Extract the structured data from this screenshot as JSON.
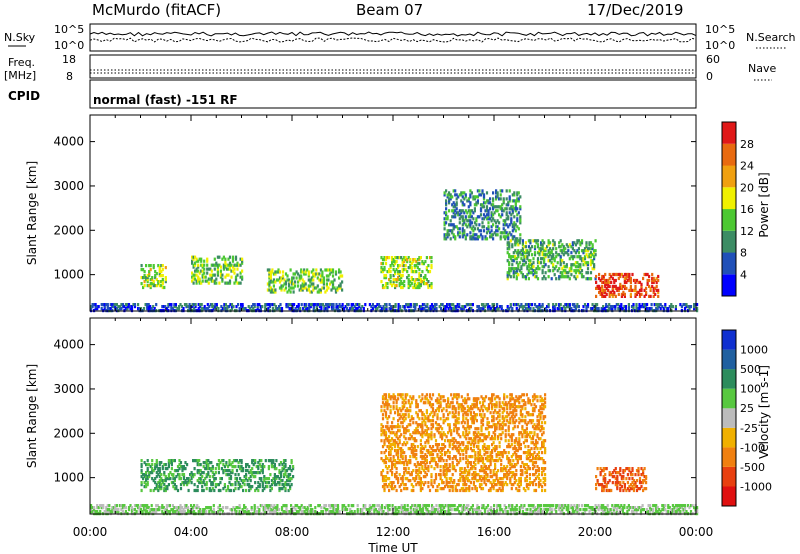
{
  "header": {
    "station": "McMurdo (fitACF)",
    "beam": "Beam 07",
    "date": "17/Dec/2019"
  },
  "top_panel": {
    "left_label": "N.Sky",
    "right_label": "N.Search",
    "left_ticks": [
      "10^5",
      "10^0"
    ],
    "right_ticks": [
      "10^5",
      "10^0"
    ]
  },
  "freq_panel": {
    "left_label_1": "Freq.",
    "left_label_2": "[MHz]",
    "right_label": "Nave",
    "left_ticks": [
      "18",
      "8"
    ],
    "right_ticks": [
      "60",
      "0"
    ]
  },
  "cpid_panel": {
    "label": "CPID",
    "text": "normal (fast) -151 RF"
  },
  "x_axis": {
    "label": "Time UT",
    "ticks": [
      "00:00",
      "04:00",
      "08:00",
      "12:00",
      "16:00",
      "20:00",
      "00:00"
    ]
  },
  "chart_data": [
    {
      "type": "heatmap",
      "title": "Power",
      "xlabel": "Time UT",
      "ylabel": "Slant Range [km]",
      "colorbar_label": "Power [dB]",
      "y_ticks": [
        1000,
        2000,
        3000,
        4000
      ],
      "colorbar_ticks": [
        4,
        8,
        12,
        16,
        20,
        24,
        28
      ],
      "colors": [
        "#0000ff",
        "#2050b8",
        "#3c8c64",
        "#4cc832",
        "#f0f000",
        "#f0a010",
        "#e86a10",
        "#e01818"
      ],
      "echo_regions": [
        {
          "time": "00:00-24:00",
          "range_km": [
            180,
            320
          ],
          "typical_power_db": 6
        },
        {
          "time": "02:00-03:00",
          "range_km": [
            700,
            1200
          ],
          "typical_power_db": 16
        },
        {
          "time": "04:00-06:00",
          "range_km": [
            800,
            1400
          ],
          "typical_power_db": 14
        },
        {
          "time": "07:00-10:00",
          "range_km": [
            600,
            1100
          ],
          "typical_power_db": 14
        },
        {
          "time": "11:30-13:30",
          "range_km": [
            700,
            1400
          ],
          "typical_power_db": 16
        },
        {
          "time": "14:00-17:00",
          "range_km": [
            1800,
            2900
          ],
          "typical_power_db": 10
        },
        {
          "time": "16:30-20:00",
          "range_km": [
            900,
            1800
          ],
          "typical_power_db": 12
        },
        {
          "time": "20:00-22:30",
          "range_km": [
            500,
            1000
          ],
          "typical_power_db": 28
        }
      ]
    },
    {
      "type": "heatmap",
      "title": "Velocity",
      "xlabel": "Time UT",
      "ylabel": "Slant Range [km]",
      "colorbar_label": "Velocity [m s-1]",
      "y_ticks": [
        1000,
        2000,
        3000,
        4000
      ],
      "colorbar_ticks": [
        1000,
        500,
        100,
        25,
        -25,
        -100,
        -500,
        -1000
      ],
      "colors": [
        "#1030d0",
        "#2060a0",
        "#2c8c5c",
        "#58c840",
        "#bcbcbc",
        "#f0b000",
        "#f08010",
        "#e84010",
        "#e01010"
      ],
      "echo_regions": [
        {
          "time": "00:00-24:00",
          "range_km": [
            180,
            400
          ],
          "typical_velocity": 25
        },
        {
          "time": "02:00-08:00",
          "range_km": [
            700,
            1400
          ],
          "typical_velocity": 100
        },
        {
          "time": "11:30-18:00",
          "range_km": [
            700,
            2900
          ],
          "typical_velocity": -100
        },
        {
          "time": "20:00-22:00",
          "range_km": [
            700,
            1200
          ],
          "typical_velocity": -500
        }
      ]
    }
  ]
}
